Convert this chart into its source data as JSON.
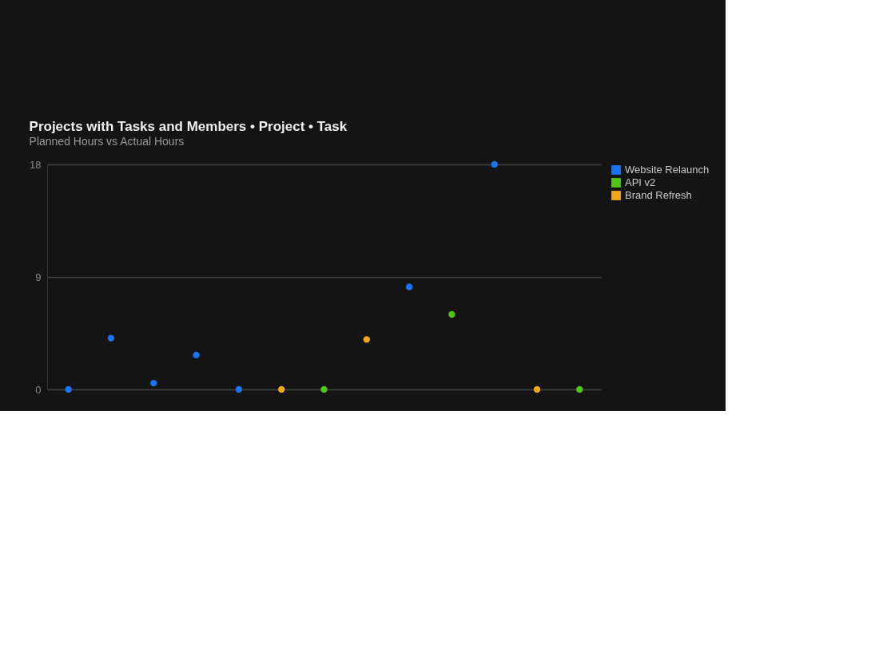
{
  "chart_data": {
    "type": "scatter",
    "title": "Projects with Tasks and Members • Project • Task",
    "subtitle": "Planned Hours vs Actual Hours",
    "categories": [
      null,
      null,
      null,
      null,
      null,
      null,
      null,
      null,
      null,
      null,
      null,
      null,
      null
    ],
    "series": [
      {
        "name": "Website Relaunch",
        "color": "#1a73f0",
        "values": [
          0,
          4.1,
          0.5,
          2.75,
          0,
          null,
          null,
          null,
          8.2,
          null,
          18,
          null,
          null
        ]
      },
      {
        "name": "API v2",
        "color": "#52c41a",
        "values": [
          null,
          null,
          null,
          null,
          null,
          null,
          0,
          null,
          null,
          6,
          null,
          null,
          0
        ]
      },
      {
        "name": "Brand Refresh",
        "color": "#f0a81a",
        "values": [
          null,
          null,
          null,
          null,
          null,
          0,
          null,
          4,
          null,
          null,
          null,
          0,
          null
        ]
      }
    ],
    "ylim": [
      0,
      18
    ],
    "yticks": [
      0,
      9,
      18
    ],
    "grid": "y",
    "legend": "top right",
    "marker": "circle"
  }
}
